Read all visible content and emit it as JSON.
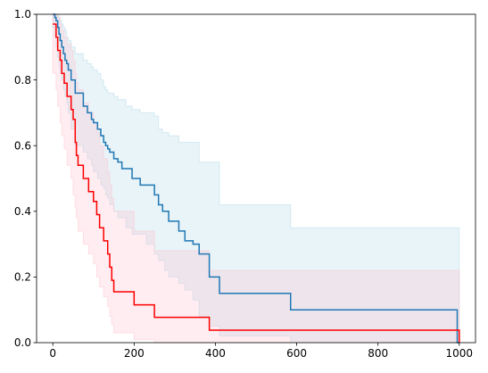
{
  "chart_data": {
    "type": "line",
    "chart_style": "kaplan-meier step curves with confidence bands",
    "title": "",
    "xlabel": "",
    "ylabel": "",
    "xlim": [
      -40,
      1040
    ],
    "ylim": [
      0.0,
      1.0
    ],
    "xticks": [
      0,
      200,
      400,
      600,
      800,
      1000
    ],
    "yticks": [
      0.0,
      0.2,
      0.4,
      0.6,
      0.8,
      1.0
    ],
    "xtick_labels": [
      "0",
      "200",
      "400",
      "600",
      "800",
      "1000"
    ],
    "ytick_labels": [
      "0.0",
      "0.2",
      "0.4",
      "0.6",
      "0.8",
      "1.0"
    ],
    "grid": false,
    "legend": "none",
    "series": [
      {
        "color": "#1f77b4",
        "band_color": "#add8e6",
        "x": [
          0,
          5,
          8,
          12,
          15,
          18,
          22,
          26,
          30,
          34,
          38,
          45,
          55,
          75,
          85,
          95,
          100,
          110,
          118,
          125,
          130,
          135,
          140,
          150,
          160,
          170,
          180,
          195,
          215,
          230,
          250,
          260,
          270,
          275,
          285,
          310,
          325,
          345,
          360,
          385,
          410,
          585,
          995,
          1000
        ],
        "y": [
          1.0,
          0.99,
          0.98,
          0.96,
          0.94,
          0.92,
          0.9,
          0.88,
          0.86,
          0.85,
          0.83,
          0.8,
          0.76,
          0.72,
          0.7,
          0.68,
          0.67,
          0.65,
          0.63,
          0.61,
          0.6,
          0.59,
          0.58,
          0.56,
          0.55,
          0.53,
          0.53,
          0.5,
          0.48,
          0.48,
          0.45,
          0.42,
          0.4,
          0.4,
          0.37,
          0.34,
          0.31,
          0.3,
          0.27,
          0.2,
          0.15,
          0.1,
          0.0,
          0.0
        ],
        "upper": [
          1.0,
          1.0,
          1.0,
          1.0,
          0.99,
          0.98,
          0.97,
          0.96,
          0.95,
          0.93,
          0.92,
          0.9,
          0.88,
          0.86,
          0.85,
          0.84,
          0.83,
          0.82,
          0.8,
          0.78,
          0.77,
          0.76,
          0.76,
          0.75,
          0.74,
          0.74,
          0.72,
          0.71,
          0.7,
          0.7,
          0.69,
          0.65,
          0.64,
          0.64,
          0.63,
          0.61,
          0.61,
          0.61,
          0.55,
          0.55,
          0.42,
          0.35,
          0.35,
          0.35
        ],
        "lower": [
          0.98,
          0.96,
          0.93,
          0.9,
          0.87,
          0.84,
          0.82,
          0.8,
          0.77,
          0.75,
          0.73,
          0.7,
          0.65,
          0.6,
          0.58,
          0.56,
          0.54,
          0.52,
          0.5,
          0.48,
          0.47,
          0.45,
          0.44,
          0.42,
          0.4,
          0.38,
          0.38,
          0.35,
          0.33,
          0.33,
          0.3,
          0.27,
          0.25,
          0.25,
          0.22,
          0.2,
          0.18,
          0.16,
          0.13,
          0.08,
          0.05,
          0.02,
          0.0,
          0.0
        ]
      },
      {
        "color": "#ff0000",
        "band_color": "#ffc0cb",
        "x": [
          0,
          8,
          12,
          18,
          22,
          28,
          35,
          45,
          50,
          55,
          58,
          62,
          75,
          88,
          100,
          108,
          115,
          125,
          135,
          140,
          145,
          150,
          200,
          250,
          385,
          1000
        ],
        "y": [
          0.97,
          0.93,
          0.89,
          0.86,
          0.82,
          0.79,
          0.75,
          0.71,
          0.68,
          0.61,
          0.57,
          0.54,
          0.5,
          0.46,
          0.43,
          0.39,
          0.35,
          0.31,
          0.27,
          0.23,
          0.19,
          0.155,
          0.115,
          0.077,
          0.038,
          0.0
        ],
        "upper": [
          1.0,
          1.0,
          0.99,
          0.97,
          0.95,
          0.93,
          0.91,
          0.89,
          0.86,
          0.82,
          0.79,
          0.77,
          0.73,
          0.7,
          0.67,
          0.64,
          0.6,
          0.56,
          0.52,
          0.48,
          0.44,
          0.4,
          0.34,
          0.28,
          0.22,
          0.16
        ],
        "lower": [
          0.9,
          0.82,
          0.77,
          0.72,
          0.67,
          0.63,
          0.59,
          0.54,
          0.5,
          0.45,
          0.41,
          0.38,
          0.34,
          0.3,
          0.27,
          0.24,
          0.2,
          0.17,
          0.14,
          0.11,
          0.08,
          0.055,
          0.03,
          0.01,
          0.0,
          0.0
        ]
      }
    ]
  }
}
